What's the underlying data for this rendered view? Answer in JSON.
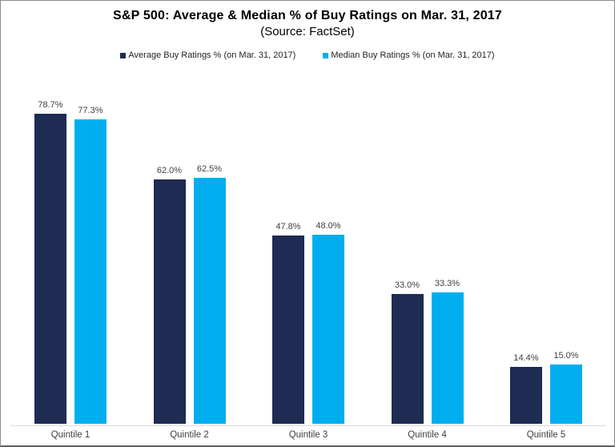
{
  "chart_data": {
    "type": "bar",
    "title": "S&P 500: Average & Median % of Buy Ratings on Mar. 31, 2017",
    "subtitle": "(Source: FactSet)",
    "categories": [
      "Quintile 1",
      "Quintile 2",
      "Quintile 3",
      "Quintile 4",
      "Quintile 5"
    ],
    "series": [
      {
        "name": "Average Buy Ratings % (on Mar. 31, 2017)",
        "key": "average",
        "color": "#1E2B52",
        "values": [
          78.7,
          62.0,
          47.8,
          33.0,
          14.4
        ]
      },
      {
        "name": "Median Buy Ratings % (on Mar. 31, 2017)",
        "key": "median",
        "color": "#00AEEF",
        "values": [
          77.3,
          62.5,
          48.0,
          33.3,
          15.0
        ]
      }
    ],
    "value_labels": [
      [
        "78.7%",
        "62.0%",
        "47.8%",
        "33.0%",
        "14.4%"
      ],
      [
        "77.3%",
        "62.5%",
        "48.0%",
        "33.3%",
        "15.0%"
      ]
    ],
    "xlabel": "",
    "ylabel": "",
    "ylim": [
      0,
      87.7
    ],
    "grid": false,
    "legend_position": "top",
    "colors": {
      "axis_line": "#dcdcdc",
      "label_text": "#404040",
      "frame_border": "#8e8e8e"
    }
  }
}
